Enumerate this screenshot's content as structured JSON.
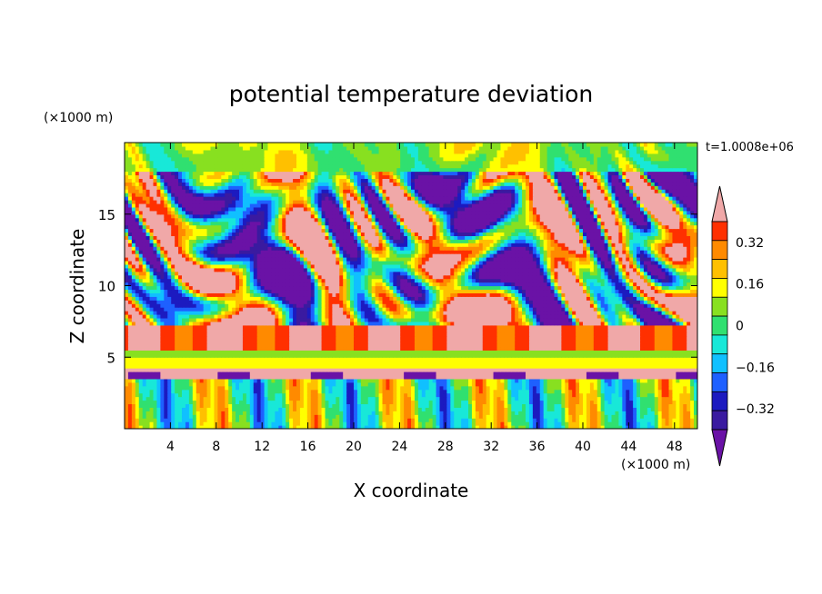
{
  "chart_data": {
    "type": "heatmap",
    "title": "potential temperature deviation",
    "xlabel": "X coordinate",
    "ylabel": "Z coordinate",
    "x_unit": "(×1000 m)",
    "z_unit": "(×1000 m)",
    "time_label": "t=1.0008e+06",
    "xlim": [
      0,
      50
    ],
    "zlim": [
      0,
      20
    ],
    "x_ticks": [
      4,
      8,
      12,
      16,
      20,
      24,
      28,
      32,
      36,
      40,
      44,
      48
    ],
    "z_ticks": [
      5,
      10,
      15
    ],
    "colorbar": {
      "levels": [
        -0.48,
        -0.4,
        -0.32,
        -0.24,
        -0.16,
        -0.08,
        0,
        0.08,
        0.16,
        0.24,
        0.32,
        0.4
      ],
      "colors": [
        "#6a12a6",
        "#3a1aa0",
        "#1c1ac0",
        "#1e60ff",
        "#10c0ff",
        "#18e8d8",
        "#30e070",
        "#88e020",
        "#ffff00",
        "#ffc000",
        "#ff8a00",
        "#ff3000",
        "#f0a8a8"
      ],
      "tick_values": [
        0.32,
        0.16,
        0,
        -0.16,
        -0.32
      ],
      "tick_labels": [
        "0.32",
        "0.16",
        "0",
        "−0.16",
        "−0.32"
      ]
    }
  }
}
